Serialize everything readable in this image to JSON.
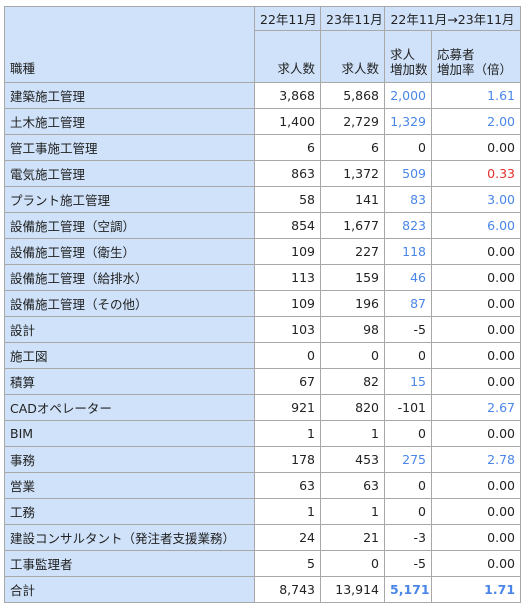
{
  "colors": {
    "header_bg": "#cfe2f9",
    "grid_line": "#a8a8a8",
    "positive": "#4a86e8",
    "negative_rate": "#e03030",
    "text": "#222222"
  },
  "header": {
    "category": "職種",
    "periods": {
      "nov22": "22年11月",
      "nov23": "23年11月",
      "change": "22年11月→23年11月"
    },
    "columns": {
      "jobs_nov22": "求人数",
      "jobs_nov23": "求人数",
      "job_increase_l1": "求人",
      "job_increase_l2": "増加数",
      "applicant_rate_l1": "応募者",
      "applicant_rate_l2": "増加率（倍）"
    }
  },
  "rows": [
    {
      "category": "建築施工管理",
      "nov22": "3,868",
      "nov23": "5,868",
      "increase": "2,000",
      "rate": "1.61",
      "inc_color": "blue",
      "rate_color": "blue"
    },
    {
      "category": "土木施工管理",
      "nov22": "1,400",
      "nov23": "2,729",
      "increase": "1,329",
      "rate": "2.00",
      "inc_color": "blue",
      "rate_color": "blue"
    },
    {
      "category": "管工事施工管理",
      "nov22": "6",
      "nov23": "6",
      "increase": "0",
      "rate": "0.00",
      "inc_color": "",
      "rate_color": ""
    },
    {
      "category": "電気施工管理",
      "nov22": "863",
      "nov23": "1,372",
      "increase": "509",
      "rate": "0.33",
      "inc_color": "blue",
      "rate_color": "red"
    },
    {
      "category": "プラント施工管理",
      "nov22": "58",
      "nov23": "141",
      "increase": "83",
      "rate": "3.00",
      "inc_color": "blue",
      "rate_color": "blue"
    },
    {
      "category": "設備施工管理（空調）",
      "nov22": "854",
      "nov23": "1,677",
      "increase": "823",
      "rate": "6.00",
      "inc_color": "blue",
      "rate_color": "blue"
    },
    {
      "category": "設備施工管理（衛生）",
      "nov22": "109",
      "nov23": "227",
      "increase": "118",
      "rate": "0.00",
      "inc_color": "blue",
      "rate_color": ""
    },
    {
      "category": "設備施工管理（給排水）",
      "nov22": "113",
      "nov23": "159",
      "increase": "46",
      "rate": "0.00",
      "inc_color": "blue",
      "rate_color": ""
    },
    {
      "category": "設備施工管理（その他）",
      "nov22": "109",
      "nov23": "196",
      "increase": "87",
      "rate": "0.00",
      "inc_color": "blue",
      "rate_color": ""
    },
    {
      "category": "設計",
      "nov22": "103",
      "nov23": "98",
      "increase": "-5",
      "rate": "0.00",
      "inc_color": "",
      "rate_color": ""
    },
    {
      "category": "施工図",
      "nov22": "0",
      "nov23": "0",
      "increase": "0",
      "rate": "0.00",
      "inc_color": "",
      "rate_color": ""
    },
    {
      "category": "積算",
      "nov22": "67",
      "nov23": "82",
      "increase": "15",
      "rate": "0.00",
      "inc_color": "blue",
      "rate_color": ""
    },
    {
      "category": "CADオペレーター",
      "nov22": "921",
      "nov23": "820",
      "increase": "-101",
      "rate": "2.67",
      "inc_color": "",
      "rate_color": "blue"
    },
    {
      "category": "BIM",
      "nov22": "1",
      "nov23": "1",
      "increase": "0",
      "rate": "0.00",
      "inc_color": "",
      "rate_color": ""
    },
    {
      "category": "事務",
      "nov22": "178",
      "nov23": "453",
      "increase": "275",
      "rate": "2.78",
      "inc_color": "blue",
      "rate_color": "blue"
    },
    {
      "category": "営業",
      "nov22": "63",
      "nov23": "63",
      "increase": "0",
      "rate": "0.00",
      "inc_color": "",
      "rate_color": ""
    },
    {
      "category": "工務",
      "nov22": "1",
      "nov23": "1",
      "increase": "0",
      "rate": "0.00",
      "inc_color": "",
      "rate_color": ""
    },
    {
      "category": "建設コンサルタント（発注者支援業務）",
      "nov22": "24",
      "nov23": "21",
      "increase": "-3",
      "rate": "0.00",
      "inc_color": "",
      "rate_color": ""
    },
    {
      "category": "工事監理者",
      "nov22": "5",
      "nov23": "0",
      "increase": "-5",
      "rate": "0.00",
      "inc_color": "",
      "rate_color": ""
    },
    {
      "category": "合計",
      "nov22": "8,743",
      "nov23": "13,914",
      "increase": "5,171",
      "rate": "1.71",
      "inc_color": "blue-bold",
      "rate_color": "blue-bold"
    }
  ]
}
